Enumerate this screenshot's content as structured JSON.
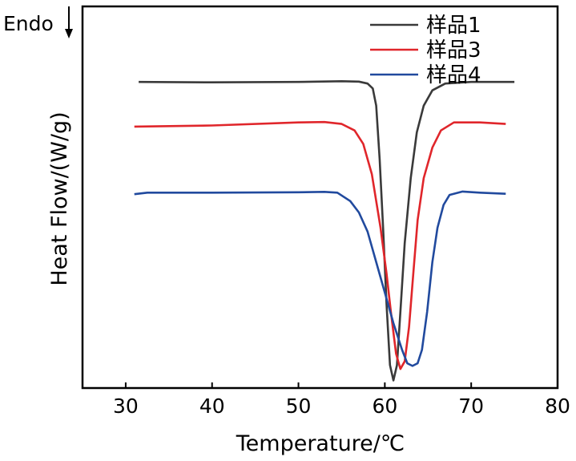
{
  "chart_data": {
    "type": "line",
    "title": "",
    "xlabel": "Temperature/℃",
    "ylabel": "Heat Flow/(W/g)",
    "annotation": "Endo",
    "annotation_arrow": "down",
    "xlim": [
      25,
      80
    ],
    "ylim": [
      0,
      100
    ],
    "xticks": [
      30,
      40,
      50,
      60,
      70,
      80
    ],
    "yticks_shown": false,
    "grid": false,
    "legend_position": "top-right",
    "series": [
      {
        "name": "样品1",
        "color": "#3a3a3a",
        "points": [
          [
            31.5,
            80.2
          ],
          [
            40,
            80.1
          ],
          [
            50,
            80.2
          ],
          [
            55,
            80.4
          ],
          [
            57,
            80.3
          ],
          [
            58,
            79.8
          ],
          [
            58.6,
            78.5
          ],
          [
            59,
            74
          ],
          [
            59.4,
            60
          ],
          [
            59.8,
            42
          ],
          [
            60.2,
            22
          ],
          [
            60.6,
            6
          ],
          [
            61,
            2
          ],
          [
            61.4,
            6
          ],
          [
            61.8,
            20
          ],
          [
            62.3,
            38
          ],
          [
            63,
            55
          ],
          [
            63.7,
            67
          ],
          [
            64.5,
            74
          ],
          [
            65.5,
            78
          ],
          [
            67,
            79.8
          ],
          [
            70,
            80.2
          ],
          [
            75,
            80.2
          ]
        ]
      },
      {
        "name": "样品3",
        "color": "#e0262b",
        "points": [
          [
            31,
            68.5
          ],
          [
            40,
            68.8
          ],
          [
            50,
            69.6
          ],
          [
            53,
            69.7
          ],
          [
            55,
            69.2
          ],
          [
            56.5,
            67.5
          ],
          [
            57.5,
            64
          ],
          [
            58.5,
            56
          ],
          [
            59.5,
            42
          ],
          [
            60.2,
            30
          ],
          [
            60.7,
            20
          ],
          [
            61.3,
            9
          ],
          [
            61.8,
            5
          ],
          [
            62.3,
            7
          ],
          [
            62.8,
            16
          ],
          [
            63.3,
            30
          ],
          [
            63.8,
            44
          ],
          [
            64.5,
            55
          ],
          [
            65.5,
            63
          ],
          [
            66.5,
            67.5
          ],
          [
            68,
            69.6
          ],
          [
            71,
            69.6
          ],
          [
            74,
            69.2
          ]
        ]
      },
      {
        "name": "样品4",
        "color": "#214a9e",
        "points": [
          [
            31,
            50.8
          ],
          [
            32.5,
            51.2
          ],
          [
            40,
            51.2
          ],
          [
            50,
            51.3
          ],
          [
            53,
            51.4
          ],
          [
            54.5,
            51.2
          ],
          [
            56,
            49
          ],
          [
            57,
            46
          ],
          [
            58,
            41
          ],
          [
            59,
            33
          ],
          [
            60,
            25
          ],
          [
            61,
            17
          ],
          [
            62,
            10
          ],
          [
            62.6,
            6.5
          ],
          [
            63.2,
            5.8
          ],
          [
            63.8,
            6.5
          ],
          [
            64.3,
            10
          ],
          [
            64.9,
            20
          ],
          [
            65.5,
            33
          ],
          [
            66.1,
            42
          ],
          [
            66.8,
            48
          ],
          [
            67.5,
            50.6
          ],
          [
            69,
            51.5
          ],
          [
            71,
            51.2
          ],
          [
            74,
            50.9
          ]
        ]
      }
    ]
  }
}
